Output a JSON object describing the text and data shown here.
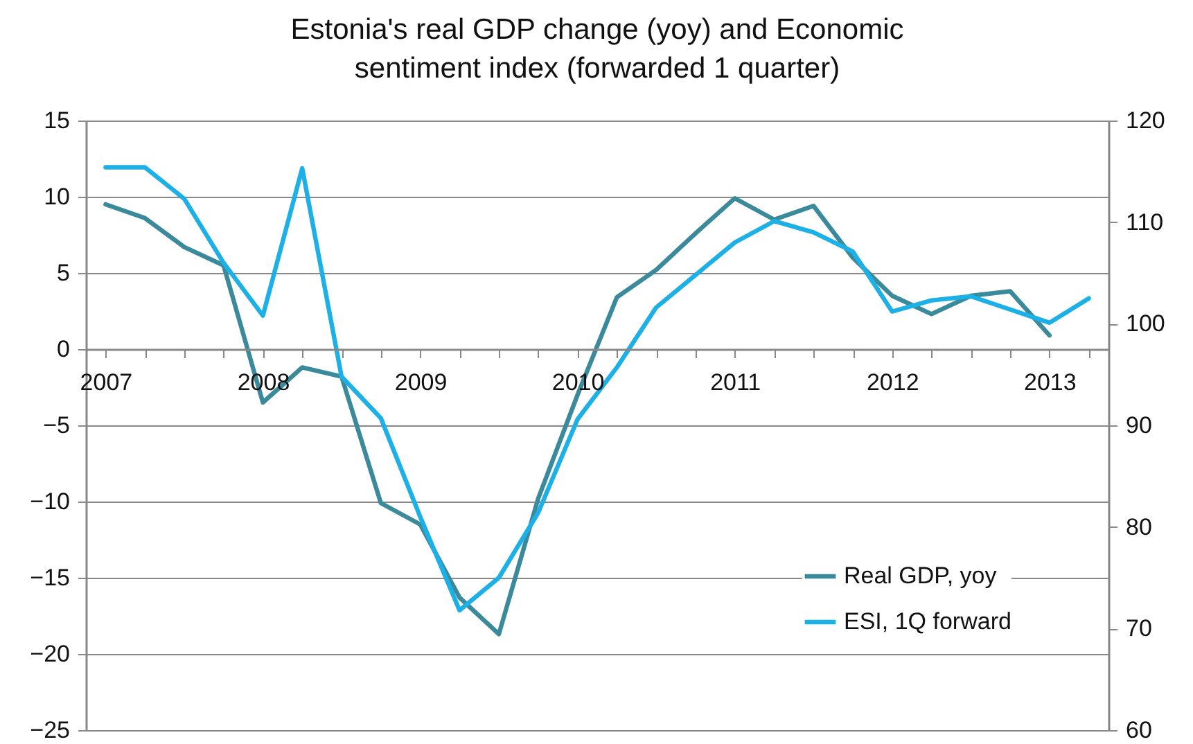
{
  "chart_data": {
    "type": "line",
    "title": "Estonia's real GDP change (yoy) and Economic\nsentiment index (forwarded 1 quarter)",
    "categories": [
      "2007",
      null,
      null,
      null,
      "2008",
      null,
      null,
      null,
      "2009",
      null,
      null,
      null,
      "2010",
      null,
      null,
      null,
      "2011",
      null,
      null,
      null,
      "2012",
      null,
      null,
      null,
      "2013",
      null
    ],
    "series": [
      {
        "name": "Real GDP, yoy",
        "color": "#3a8a9c",
        "values": [
          9.5,
          8.6,
          6.7,
          5.5,
          -3.5,
          -1.2,
          -1.8,
          -10.1,
          -11.5,
          -16.3,
          -18.7,
          -9.8,
          -3.0,
          3.4,
          5.2,
          7.6,
          9.9,
          8.5,
          9.4,
          6.0,
          3.5,
          2.3,
          3.5,
          3.8,
          0.9,
          null
        ]
      },
      {
        "name": "ESI, 1Q forward",
        "color": "#1cb0e6",
        "axis": "y2",
        "values": [
          115.4,
          115.4,
          112.3,
          106,
          100.8,
          115.3,
          94.8,
          90.7,
          81,
          71.8,
          75.0,
          81.4,
          90.6,
          95.7,
          101.6,
          104.8,
          108.0,
          110.1,
          109.0,
          107.1,
          101.2,
          102.3,
          102.7,
          101.4,
          100.1,
          102.5
        ]
      }
    ],
    "ylim": [
      -25,
      15
    ],
    "yticks": [
      -25,
      -20,
      -15,
      -10,
      -5,
      0,
      5,
      10,
      15
    ],
    "y2lim": [
      60,
      120
    ],
    "y2ticks": [
      60,
      70,
      80,
      90,
      100,
      110,
      120
    ],
    "grid": "y",
    "legend": "bottom right",
    "line_style": "solid"
  }
}
